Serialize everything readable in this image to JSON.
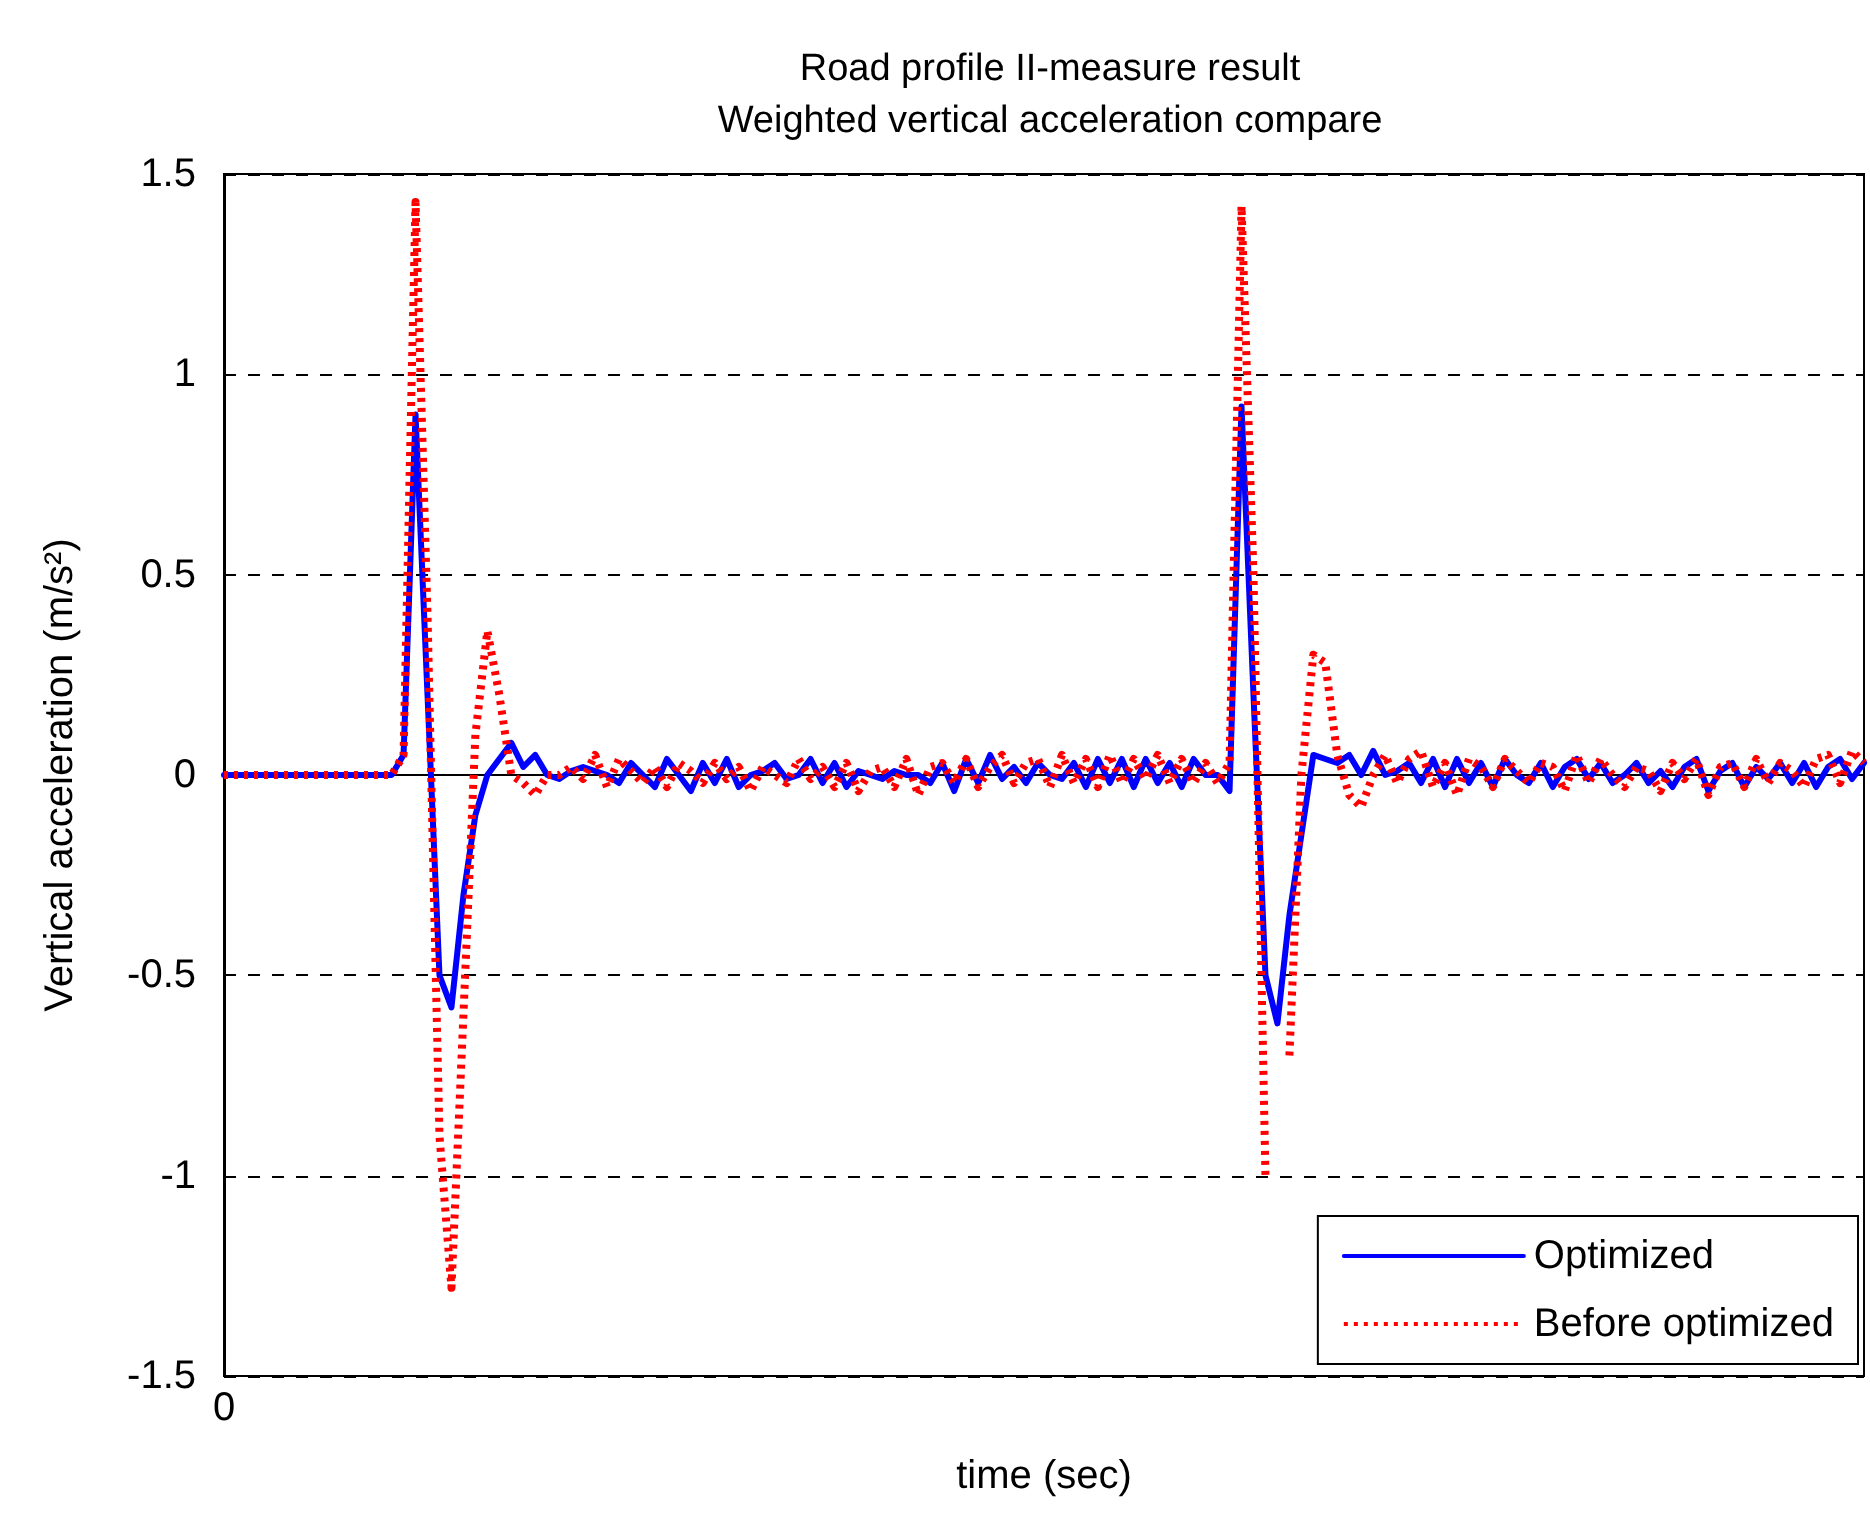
{
  "chart_data": {
    "type": "line",
    "title": "Road profile II-measure result",
    "subtitle": "Weighted vertical acceleration compare",
    "xlabel": "time (sec)",
    "ylabel": "Vertical acceleration (m/s²)",
    "categories": [
      "0",
      null,
      null,
      null,
      null,
      null,
      null,
      null,
      null,
      null,
      null,
      null,
      null,
      null,
      null,
      null,
      null,
      null,
      null,
      null,
      null,
      null,
      null,
      null,
      null,
      null,
      null,
      null,
      null,
      null,
      null,
      null,
      null,
      null,
      null,
      null,
      null,
      null,
      null,
      null,
      null,
      null,
      null,
      null,
      null,
      null,
      null,
      null,
      null,
      null,
      null,
      null,
      null,
      null,
      null,
      null,
      null,
      null,
      null,
      null,
      null,
      null,
      null,
      null,
      null,
      null,
      null,
      null,
      null,
      null,
      null,
      null,
      null,
      null,
      null,
      null,
      null,
      null,
      null,
      null,
      null,
      null,
      null,
      null,
      null,
      null,
      null,
      null,
      null,
      null,
      null,
      null,
      null,
      null,
      null,
      null,
      null,
      null,
      null,
      null,
      null,
      null,
      null,
      null,
      null,
      null,
      null,
      null,
      null,
      null,
      null,
      null,
      null,
      null,
      null,
      null,
      null,
      null,
      null,
      null,
      null,
      null,
      null,
      null,
      null,
      null,
      null,
      null,
      null,
      null,
      null,
      null,
      null,
      null,
      null,
      null,
      null,
      null
    ],
    "series": [
      {
        "name": "Optimized",
        "color": "#0000ff",
        "line_style": "solid",
        "values": [
          0,
          0,
          0,
          0,
          0,
          0,
          0,
          0,
          0,
          0,
          0,
          0,
          0,
          0,
          0,
          0.05,
          0.9,
          0.2,
          -0.5,
          -0.58,
          -0.3,
          -0.1,
          0,
          0.04,
          0.08,
          0.02,
          0.05,
          0,
          -0.01,
          0.01,
          0.02,
          0.01,
          0,
          -0.02,
          0.03,
          0,
          -0.03,
          0.04,
          0,
          -0.04,
          0.03,
          -0.02,
          0.04,
          -0.03,
          0,
          0.01,
          0.03,
          -0.01,
          0,
          0.04,
          -0.02,
          0.03,
          -0.03,
          0.01,
          0,
          -0.01,
          0.01,
          0,
          0,
          -0.02,
          0.03,
          -0.04,
          0.04,
          -0.02,
          0.05,
          -0.01,
          0.02,
          -0.02,
          0.03,
          0,
          -0.01,
          0.03,
          -0.03,
          0.04,
          -0.02,
          0.04,
          -0.03,
          0.04,
          -0.02,
          0.03,
          -0.03,
          0.04,
          0,
          0,
          -0.04,
          0.92,
          0.2,
          -0.5,
          -0.62,
          -0.35,
          -0.15,
          0.05,
          0.04,
          0.03,
          0.05,
          0,
          0.06,
          0,
          0.01,
          0.03,
          -0.02,
          0.04,
          -0.03,
          0.04,
          -0.02,
          0.03,
          -0.03,
          0.04,
          0,
          -0.02,
          0.03,
          -0.03,
          0.02,
          0.04,
          -0.01,
          0.03,
          -0.02,
          0,
          0.03,
          -0.02,
          0.01,
          -0.03,
          0.02,
          0.04,
          -0.04,
          0.01,
          0.03,
          -0.03,
          0.02,
          -0.01,
          0.03,
          -0.02,
          0.03,
          -0.03,
          0.02,
          0.04,
          -0.01,
          0.03
        ]
      },
      {
        "name": "Before optimized",
        "color": "#ff0000",
        "line_style": "dotted",
        "values": [
          0,
          0,
          0,
          0,
          0,
          0,
          0,
          0,
          0,
          0,
          0,
          0,
          0,
          0,
          0,
          0.05,
          1.43,
          0.4,
          -0.9,
          -1.28,
          -0.6,
          0.1,
          0.36,
          0.2,
          0,
          -0.02,
          -0.05,
          0,
          0,
          0.02,
          -0.01,
          0.05,
          -0.03,
          0.04,
          0.01,
          -0.02,
          0.02,
          -0.03,
          0.03,
          0.01,
          -0.02,
          0.03,
          -0.01,
          0.02,
          -0.04,
          0.02,
          0,
          -0.02,
          0.04,
          -0.01,
          0.02,
          -0.03,
          0.03,
          -0.04,
          0.01,
          0.02,
          -0.03,
          0.04,
          -0.05,
          0.02,
          0.03,
          -0.02,
          0.04,
          -0.03,
          0.02,
          0.05,
          -0.02,
          0.03,
          0.04,
          -0.03,
          0.05,
          -0.02,
          0.04,
          -0.03,
          0.05,
          -0.02,
          0.04,
          -0.01,
          0.05,
          -0.02,
          0.04,
          -0.02,
          0.03,
          -0.02,
          0.03,
          1.42,
          0.5,
          -1.0,
          null,
          -0.7,
          0,
          0.3,
          0.28,
          0.05,
          -0.05,
          -0.08,
          0,
          0.05,
          -0.02,
          0.04,
          0.06,
          -0.03,
          0.03,
          -0.05,
          0.04,
          0.02,
          -0.03,
          0.04,
          0.01,
          -0.02,
          0.03,
          0.02,
          -0.04,
          0.05,
          -0.02,
          0.04,
          0,
          -0.03,
          0.02,
          0.01,
          -0.04,
          0.03,
          -0.01,
          0.04,
          -0.05,
          0.02,
          0.03,
          -0.03,
          0.04,
          -0.02,
          0.03,
          0.01,
          -0.03,
          0.04,
          0.05,
          -0.02,
          0.06,
          0.03
        ]
      }
    ],
    "ylim": [
      -1.5,
      1.5
    ],
    "yticks": [
      -1.5,
      -1,
      -0.5,
      0,
      0.5,
      1,
      1.5
    ],
    "grid": "y",
    "legend": "bottom right",
    "marker": "none"
  }
}
